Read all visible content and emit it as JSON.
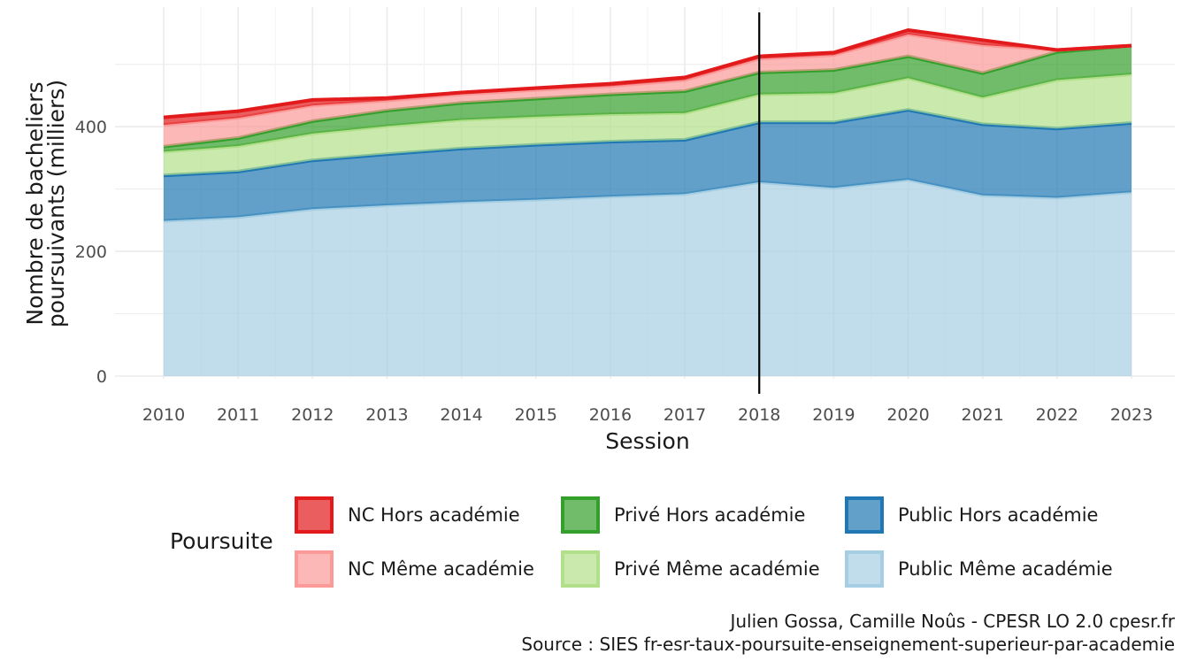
{
  "chart_data": {
    "type": "area",
    "stacked": true,
    "xlabel": "Session",
    "ylabel_line1": "Nombre de bacheliers",
    "ylabel_line2": "poursuivants (milliers)",
    "x": [
      2010,
      2011,
      2012,
      2013,
      2014,
      2015,
      2016,
      2017,
      2018,
      2019,
      2020,
      2021,
      2022,
      2023
    ],
    "x_tick_labels": [
      "2010",
      "2011",
      "2012",
      "2013",
      "2014",
      "2015",
      "2016",
      "2017",
      "2018",
      "2019",
      "2020",
      "2021",
      "2022",
      "2023"
    ],
    "y_ticks": [
      0,
      200,
      400
    ],
    "y_tick_labels": [
      "0",
      "200",
      "400"
    ],
    "ylim": [
      0,
      580
    ],
    "grid": true,
    "vertical_marker_x": 2018,
    "legend_title": "Poursuite",
    "legend_position": "bottom",
    "series": [
      {
        "name": "Public Même académie",
        "fill": "#a6cee3",
        "stroke": "#a6cee3",
        "values": [
          249,
          255,
          268,
          274,
          279,
          283,
          288,
          292,
          311,
          302,
          315,
          290,
          286,
          295
        ]
      },
      {
        "name": "Public Hors académie",
        "fill": "#1f78b4",
        "stroke": "#1f78b4",
        "values": [
          73,
          73,
          78,
          82,
          86,
          88,
          88,
          87,
          96,
          105,
          112,
          114,
          111,
          111
        ]
      },
      {
        "name": "Privé Même académie",
        "fill": "#b2df8a",
        "stroke": "#b2df8a",
        "values": [
          38,
          41,
          43,
          45,
          46,
          45,
          44,
          43,
          45,
          47,
          51,
          43,
          78,
          78
        ]
      },
      {
        "name": "Privé Hors académie",
        "fill": "#33a02c",
        "stroke": "#33a02c",
        "values": [
          8,
          13,
          20,
          25,
          27,
          29,
          32,
          35,
          35,
          37,
          35,
          39,
          45,
          46
        ]
      },
      {
        "name": "NC Même académie",
        "fill": "#fb9a99",
        "stroke": "#fb9a99",
        "values": [
          35,
          32,
          25,
          16,
          14,
          14,
          13,
          18,
          22,
          24,
          35,
          45,
          3,
          0
        ]
      },
      {
        "name": "NC Hors académie",
        "fill": "#e31a1c",
        "stroke": "#e31a1c",
        "values": [
          12,
          11,
          9,
          4,
          3,
          3,
          4,
          4,
          4,
          4,
          7,
          8,
          0,
          0
        ]
      }
    ],
    "legend_order": [
      "NC Hors académie",
      "Privé Hors académie",
      "Public Hors académie",
      "NC Même académie",
      "Privé Même académie",
      "Public Même académie"
    ]
  },
  "caption": {
    "line1": "Julien Gossa, Camille Noûs - CPESR LO 2.0 cpesr.fr",
    "line2": "Source : SIES fr-esr-taux-poursuite-enseignement-superieur-par-academie"
  }
}
